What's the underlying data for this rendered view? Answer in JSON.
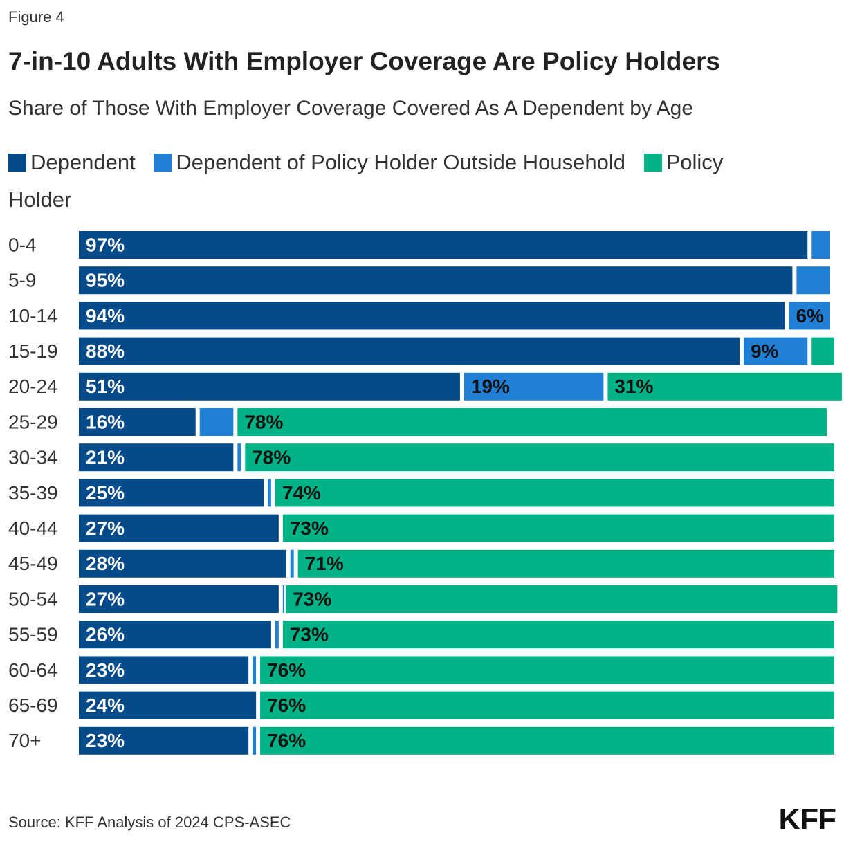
{
  "figure_label": "Figure 4",
  "chart_data": {
    "type": "stacked-bar-horizontal",
    "title": "7-in-10 Adults With Employer Coverage Are Policy Holders",
    "subtitle": "Share of Those With Employer Coverage Covered As A Dependent by Age",
    "categories": [
      "0-4",
      "5-9",
      "10-14",
      "15-19",
      "20-24",
      "25-29",
      "30-34",
      "35-39",
      "40-44",
      "45-49",
      "50-54",
      "55-59",
      "60-64",
      "65-69",
      "70+"
    ],
    "xlim": [
      0,
      100
    ],
    "series": [
      {
        "name": "Dependent",
        "color": "#054a89",
        "values": [
          97,
          95,
          94,
          88,
          51,
          16,
          21,
          25,
          27,
          28,
          27,
          26,
          23,
          24,
          23
        ],
        "value_labels": [
          "97%",
          "95%",
          "94%",
          "88%",
          "51%",
          "16%",
          "21%",
          "25%",
          "27%",
          "28%",
          "27%",
          "26%",
          "23%",
          "24%",
          "23%"
        ],
        "label_color": "#ffffff"
      },
      {
        "name": "Dependent of Policy Holder Outside Household",
        "color": "#2080d6",
        "values": [
          3,
          5,
          6,
          9,
          19,
          5,
          1,
          1,
          0,
          1,
          0.4,
          1,
          1,
          0,
          1
        ],
        "value_labels": [
          null,
          null,
          "6%",
          "9%",
          "19%",
          null,
          null,
          null,
          null,
          null,
          null,
          null,
          null,
          null,
          null
        ],
        "label_color": "#111111"
      },
      {
        "name": "Policy Holder",
        "color": "#00b386",
        "values": [
          0,
          0,
          0,
          3,
          31,
          78,
          78,
          74,
          73,
          71,
          73,
          73,
          76,
          76,
          76
        ],
        "value_labels": [
          null,
          null,
          null,
          null,
          "31%",
          "78%",
          "78%",
          "74%",
          "73%",
          "71%",
          "73%",
          "73%",
          "76%",
          "76%",
          "76%"
        ],
        "label_color": "#111111"
      }
    ],
    "source": "Source: KFF Analysis of 2024 CPS-ASEC",
    "logo": "KFF"
  }
}
